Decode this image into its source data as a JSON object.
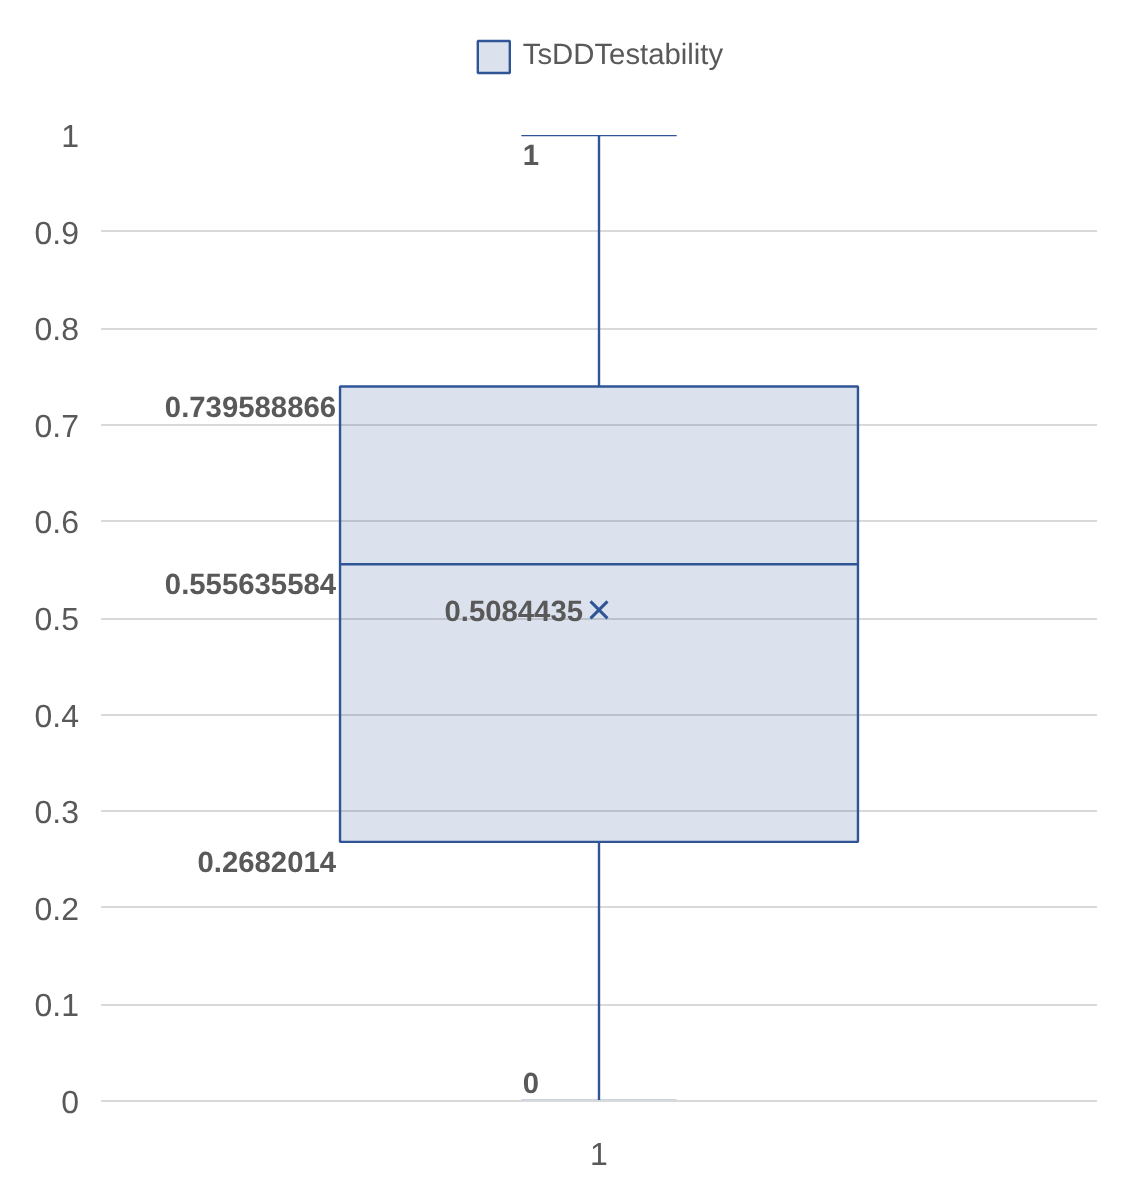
{
  "chart_data": {
    "type": "box",
    "categories": [
      "1"
    ],
    "series": [
      {
        "name": "TsDDTestability",
        "color": "#2f5597",
        "boxes": [
          {
            "low": 0,
            "q1": 0.2682014,
            "median": 0.555635584,
            "q3": 0.739588866,
            "high": 1,
            "mean": 0.5084435
          }
        ]
      }
    ],
    "ylim": [
      0,
      1
    ],
    "yticks": [
      0,
      0.1,
      0.2,
      0.3,
      0.4,
      0.5,
      0.6,
      0.7,
      0.8,
      0.9,
      1
    ],
    "annotations": [
      "1",
      "0.739588866",
      "0.555635584",
      "0.5084435",
      "0.2682014",
      "0"
    ],
    "grid": "y",
    "legend": "top"
  }
}
